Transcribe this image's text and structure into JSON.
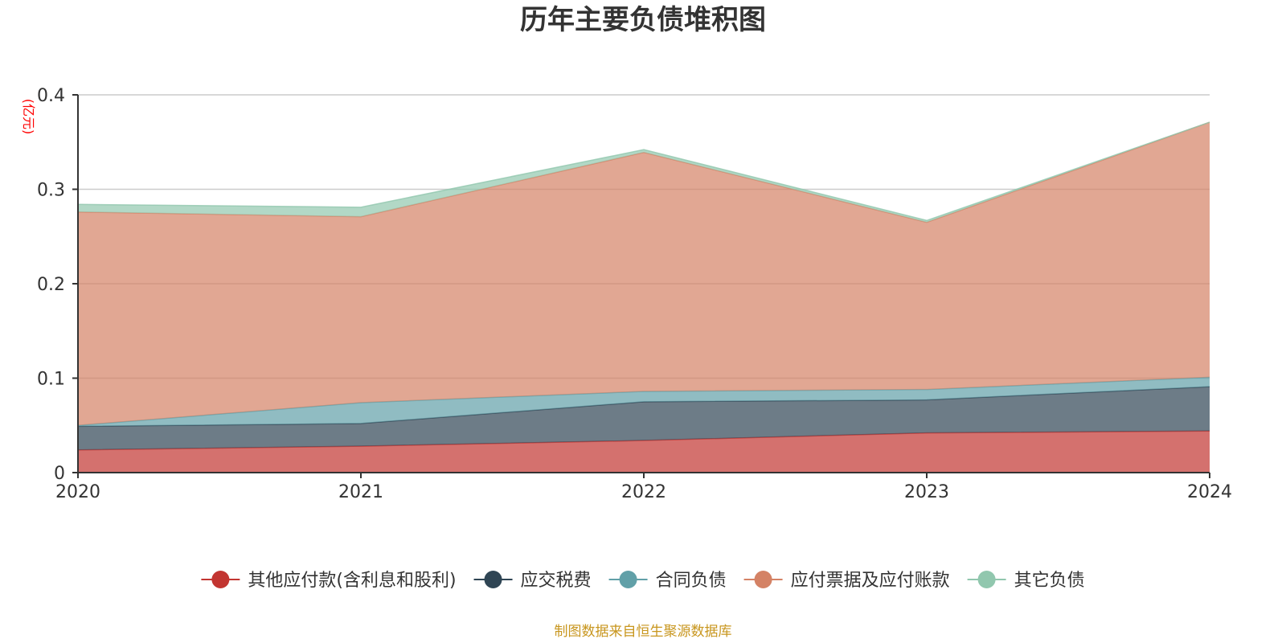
{
  "colors": {
    "axis": "#333333",
    "grid": "#cccccc",
    "unit": "#ff0000",
    "source": "#c8961e"
  },
  "chart_data": {
    "type": "area",
    "stacked": true,
    "title": "历年主要负债堆积图",
    "unit_label": "(亿元)",
    "x": [
      "2020",
      "2021",
      "2022",
      "2023",
      "2024"
    ],
    "ylim": [
      0,
      0.4
    ],
    "y_ticks": [
      "0",
      "0.1",
      "0.2",
      "0.3",
      "0.4"
    ],
    "grid": true,
    "legend_position": "bottom",
    "series": [
      {
        "name": "其他应付款(含利息和股利)",
        "color": "#c23531",
        "values": [
          0.024,
          0.028,
          0.034,
          0.042,
          0.044
        ]
      },
      {
        "name": "应交税费",
        "color": "#2f4554",
        "values": [
          0.025,
          0.024,
          0.041,
          0.035,
          0.047
        ]
      },
      {
        "name": "合同负债",
        "color": "#61a0a8",
        "values": [
          0.001,
          0.022,
          0.011,
          0.011,
          0.01
        ]
      },
      {
        "name": "应付票据及应付账款",
        "color": "#d48265",
        "values": [
          0.226,
          0.197,
          0.253,
          0.177,
          0.27
        ]
      },
      {
        "name": "其它负债",
        "color": "#91c7ae",
        "values": [
          0.008,
          0.01,
          0.003,
          0.002,
          0.0
        ]
      }
    ],
    "source_note": "制图数据来自恒生聚源数据库"
  }
}
